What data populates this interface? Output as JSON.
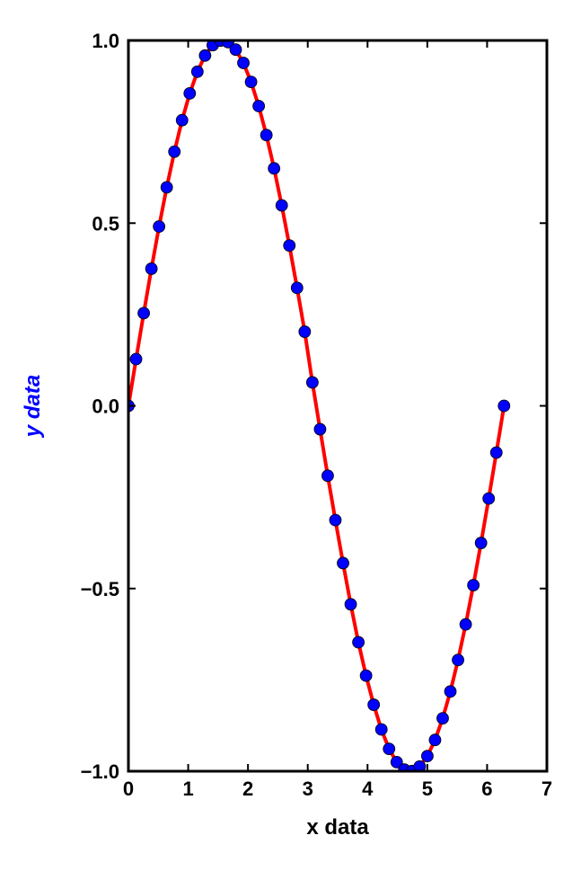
{
  "chart_data": {
    "type": "line",
    "title": "",
    "xlabel": "x data",
    "ylabel": "y data",
    "xlim": [
      0,
      7
    ],
    "ylim": [
      -1.0,
      1.0
    ],
    "xticks": [
      "0",
      "1",
      "2",
      "3",
      "4",
      "5",
      "6",
      "7"
    ],
    "yticks": [
      "−1.0",
      "−0.5",
      "0.0",
      "0.5",
      "1.0"
    ],
    "grid": false,
    "colors": {
      "line": "#ff0000",
      "markers": "#0000ff",
      "ylabel": "#0000ff",
      "xlabel": "#000000"
    },
    "series": [
      {
        "style": "line",
        "color": "#ff0000",
        "x": [
          0,
          0.1282,
          0.2565,
          0.3847,
          0.5129,
          0.6411,
          0.7694,
          0.8976,
          1.0258,
          1.1541,
          1.2823,
          1.4105,
          1.5387,
          1.667,
          1.7952,
          1.9234,
          2.0517,
          2.1799,
          2.3081,
          2.4363,
          2.5646,
          2.6928,
          2.821,
          2.9493,
          3.0775,
          3.2057,
          3.3339,
          3.4622,
          3.5904,
          3.7186,
          3.8468,
          3.9751,
          4.1033,
          4.2315,
          4.3598,
          4.488,
          4.6162,
          4.7444,
          4.8727,
          5.0009,
          5.1291,
          5.2574,
          5.3856,
          5.5138,
          5.642,
          5.7703,
          5.8985,
          6.0267,
          6.155,
          6.2832
        ],
        "y": [
          0.0,
          0.1279,
          0.2537,
          0.3753,
          0.4907,
          0.5981,
          0.6956,
          0.7818,
          0.8551,
          0.9144,
          0.9587,
          0.9872,
          0.9995,
          0.9954,
          0.9749,
          0.9384,
          0.8866,
          0.8204,
          0.741,
          0.6499,
          0.5486,
          0.4388,
          0.3228,
          0.2028,
          0.0641,
          -0.0641,
          -0.1912,
          -0.3128,
          -0.4304,
          -0.5432,
          -0.6471,
          -0.7383,
          -0.8181,
          -0.8856,
          -0.9388,
          -0.9751,
          -0.9955,
          -0.9995,
          -0.9871,
          -0.9586,
          -0.9144,
          -0.8551,
          -0.7818,
          -0.6956,
          -0.5981,
          -0.4907,
          -0.3753,
          -0.2537,
          -0.1279,
          0.0
        ]
      },
      {
        "style": "markers",
        "color": "#0000ff",
        "x": [
          0,
          0.1282,
          0.2565,
          0.3847,
          0.5129,
          0.6411,
          0.7694,
          0.8976,
          1.0258,
          1.1541,
          1.2823,
          1.4105,
          1.5387,
          1.667,
          1.7952,
          1.9234,
          2.0517,
          2.1799,
          2.3081,
          2.4363,
          2.5646,
          2.6928,
          2.821,
          2.9493,
          3.0775,
          3.2057,
          3.3339,
          3.4622,
          3.5904,
          3.7186,
          3.8468,
          3.9751,
          4.1033,
          4.2315,
          4.3598,
          4.488,
          4.6162,
          4.7444,
          4.8727,
          5.0009,
          5.1291,
          5.2574,
          5.3856,
          5.5138,
          5.642,
          5.7703,
          5.8985,
          6.0267,
          6.155,
          6.2832
        ],
        "y": [
          0.0,
          0.1279,
          0.2537,
          0.3753,
          0.4907,
          0.5981,
          0.6956,
          0.7818,
          0.8551,
          0.9144,
          0.9587,
          0.9872,
          0.9995,
          0.9954,
          0.9749,
          0.9384,
          0.8866,
          0.8204,
          0.741,
          0.6499,
          0.5486,
          0.4388,
          0.3228,
          0.2028,
          0.0641,
          -0.0641,
          -0.1912,
          -0.3128,
          -0.4304,
          -0.5432,
          -0.6471,
          -0.7383,
          -0.8181,
          -0.8856,
          -0.9388,
          -0.9751,
          -0.9955,
          -0.9995,
          -0.9871,
          -0.9586,
          -0.9144,
          -0.8551,
          -0.7818,
          -0.6956,
          -0.5981,
          -0.4907,
          -0.3753,
          -0.2537,
          -0.1279,
          0.0
        ]
      }
    ]
  }
}
